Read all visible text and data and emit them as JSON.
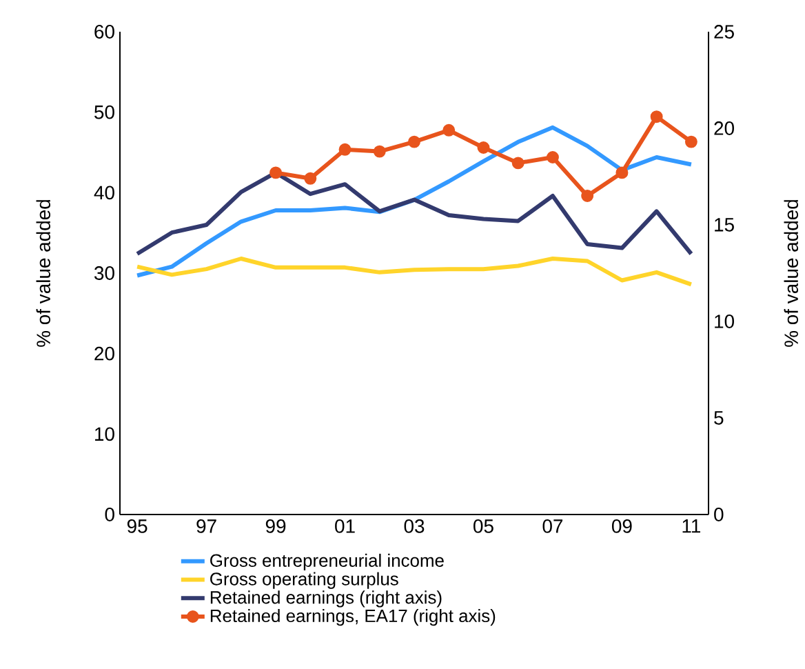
{
  "chart_data": {
    "type": "line",
    "categories": [
      "95",
      null,
      "97",
      null,
      "99",
      null,
      "01",
      null,
      "03",
      null,
      "05",
      null,
      "07",
      null,
      "09",
      null,
      "11"
    ],
    "ylabel": "% of value added",
    "y2label": "% of value added",
    "ylim": [
      0,
      60
    ],
    "yticks": [
      0,
      10,
      20,
      30,
      40,
      50,
      60
    ],
    "y2lim": [
      0,
      25
    ],
    "y2ticks": [
      0,
      5,
      10,
      15,
      20,
      25
    ],
    "legend": "bottom",
    "grid": false,
    "series": [
      {
        "name": "Gross entrepreneurial income",
        "color": "#3399ff",
        "marker": "none",
        "values": [
          29.7,
          30.8,
          33.7,
          36.4,
          37.8,
          37.8,
          38.1,
          37.6,
          39.1,
          41.4,
          43.9,
          46.3,
          48.1,
          45.8,
          42.8,
          44.4,
          43.5
        ]
      },
      {
        "name": "Gross operating surplus",
        "color": "#ffd42a",
        "marker": "none",
        "values": [
          30.8,
          29.8,
          30.5,
          31.8,
          30.7,
          30.7,
          30.7,
          30.1,
          30.4,
          30.5,
          30.5,
          30.9,
          31.8,
          31.5,
          29.1,
          30.1,
          28.6
        ]
      },
      {
        "name": "Retained earnings (right axis)",
        "color": "#333a6e",
        "axis": "y2",
        "marker": "none",
        "values": [
          13.5,
          14.6,
          15.0,
          16.7,
          17.7,
          16.6,
          17.1,
          15.7,
          16.3,
          15.5,
          15.3,
          15.2,
          16.5,
          14.0,
          13.8,
          15.7,
          13.5
        ]
      },
      {
        "name": "Retained earnings, EA17 (right axis)",
        "color": "#e8541c",
        "axis": "y2",
        "marker": "circle",
        "values": [
          null,
          null,
          null,
          null,
          17.7,
          17.4,
          18.9,
          18.8,
          19.3,
          19.9,
          19.0,
          18.2,
          18.5,
          16.5,
          17.7,
          20.6,
          19.3
        ]
      }
    ]
  }
}
